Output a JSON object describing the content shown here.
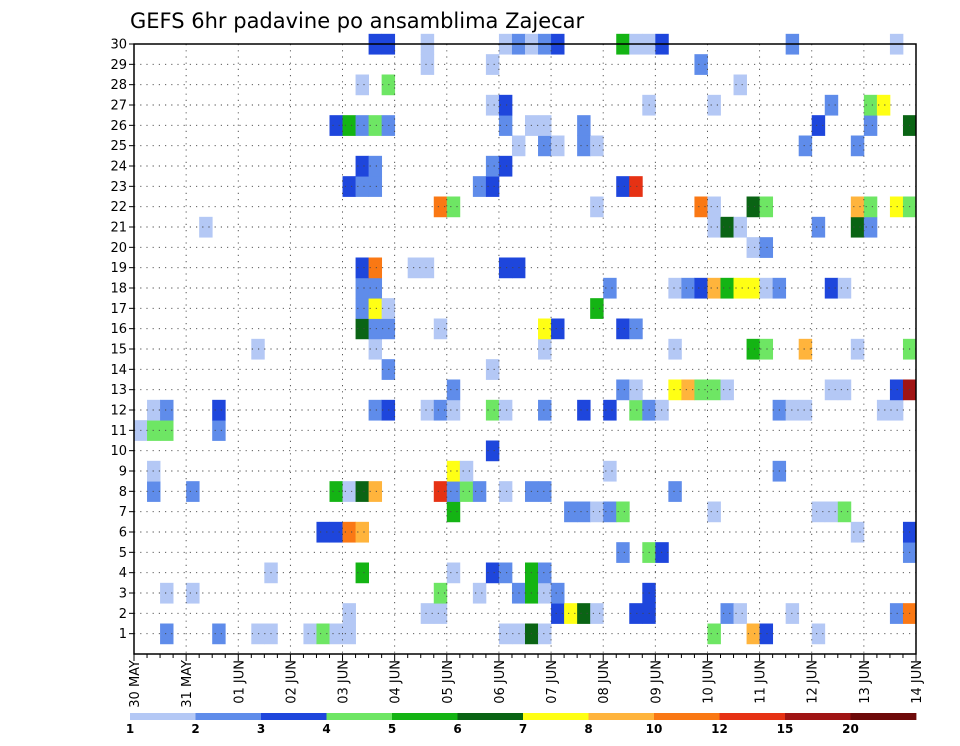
{
  "chart_data": {
    "type": "heatmap",
    "title": "GEFS 6hr padavine po ansamblima Zajecar",
    "xlabel": "",
    "ylabel": "",
    "y_labels": [
      "1",
      "2",
      "3",
      "4",
      "5",
      "6",
      "7",
      "8",
      "9",
      "10",
      "11",
      "12",
      "13",
      "14",
      "15",
      "16",
      "17",
      "18",
      "19",
      "20",
      "21",
      "22",
      "23",
      "24",
      "25",
      "26",
      "27",
      "28",
      "29",
      "30"
    ],
    "x_labels": [
      "30 MAY",
      "31 MAY",
      "01 JUN",
      "02 JUN",
      "03 JUN",
      "04 JUN",
      "05 JUN",
      "06 JUN",
      "07 JUN",
      "08 JUN",
      "09 JUN",
      "10 JUN",
      "11 JUN",
      "12 JUN",
      "13 JUN",
      "14 JUN"
    ],
    "x_steps_per_day": 4,
    "x_range_steps": [
      0,
      60
    ],
    "ylim": [
      0,
      30
    ],
    "grid": true,
    "colorbar": {
      "tick_labels": [
        "1",
        "2",
        "3",
        "4",
        "5",
        "6",
        "7",
        "8",
        "10",
        "12",
        "15",
        "20"
      ],
      "colors": [
        "#b4c8f5",
        "#5f8cea",
        "#1e46dc",
        "#6ee664",
        "#14b414",
        "#0a6414",
        "#ffff14",
        "#ffb43c",
        "#fa7814",
        "#e63214",
        "#a01414",
        "#6e0a0a"
      ]
    },
    "members": [
      {
        "y": 1,
        "cells": [
          [
            3,
            "#5f8cea"
          ],
          [
            7,
            "#5f8cea"
          ],
          [
            10,
            "#b4c8f5"
          ],
          [
            11,
            "#b4c8f5"
          ],
          [
            14,
            "#b4c8f5"
          ],
          [
            15,
            "#6ee664"
          ],
          [
            16,
            "#b4c8f5"
          ],
          [
            17,
            "#b4c8f5"
          ],
          [
            29,
            "#b4c8f5"
          ],
          [
            30,
            "#b4c8f5"
          ],
          [
            31,
            "#0a6414"
          ],
          [
            32,
            "#b4c8f5"
          ],
          [
            45,
            "#6ee664"
          ],
          [
            48,
            "#ffb43c"
          ],
          [
            49,
            "#1e46dc"
          ],
          [
            53,
            "#b4c8f5"
          ]
        ]
      },
      {
        "y": 2,
        "cells": [
          [
            17,
            "#b4c8f5"
          ],
          [
            23,
            "#b4c8f5"
          ],
          [
            24,
            "#b4c8f5"
          ],
          [
            33,
            "#1e46dc"
          ],
          [
            34,
            "#ffff14"
          ],
          [
            35,
            "#0a6414"
          ],
          [
            36,
            "#b4c8f5"
          ],
          [
            39,
            "#1e46dc"
          ],
          [
            40,
            "#1e46dc"
          ],
          [
            46,
            "#5f8cea"
          ],
          [
            47,
            "#b4c8f5"
          ],
          [
            51,
            "#b4c8f5"
          ],
          [
            59,
            "#5f8cea"
          ],
          [
            60,
            "#fa7814"
          ]
        ]
      },
      {
        "y": 3,
        "cells": [
          [
            3,
            "#b4c8f5"
          ],
          [
            5,
            "#b4c8f5"
          ],
          [
            24,
            "#6ee664"
          ],
          [
            27,
            "#b4c8f5"
          ],
          [
            30,
            "#5f8cea"
          ],
          [
            31,
            "#14b414"
          ],
          [
            32,
            "#b4c8f5"
          ],
          [
            33,
            "#5f8cea"
          ],
          [
            40,
            "#1e46dc"
          ]
        ]
      },
      {
        "y": 4,
        "cells": [
          [
            11,
            "#b4c8f5"
          ],
          [
            18,
            "#14b414"
          ],
          [
            25,
            "#b4c8f5"
          ],
          [
            28,
            "#1e46dc"
          ],
          [
            29,
            "#5f8cea"
          ],
          [
            31,
            "#14b414"
          ],
          [
            32,
            "#5f8cea"
          ]
        ]
      },
      {
        "y": 5,
        "cells": [
          [
            38,
            "#5f8cea"
          ],
          [
            40,
            "#6ee664"
          ],
          [
            41,
            "#1e46dc"
          ],
          [
            60,
            "#5f8cea"
          ]
        ]
      },
      {
        "y": 6,
        "cells": [
          [
            15,
            "#1e46dc"
          ],
          [
            16,
            "#1e46dc"
          ],
          [
            17,
            "#fa7814"
          ],
          [
            18,
            "#ffb43c"
          ],
          [
            56,
            "#b4c8f5"
          ],
          [
            60,
            "#1e46dc"
          ]
        ]
      },
      {
        "y": 7,
        "cells": [
          [
            25,
            "#14b414"
          ],
          [
            34,
            "#5f8cea"
          ],
          [
            35,
            "#5f8cea"
          ],
          [
            36,
            "#b4c8f5"
          ],
          [
            37,
            "#5f8cea"
          ],
          [
            38,
            "#6ee664"
          ],
          [
            45,
            "#b4c8f5"
          ],
          [
            53,
            "#b4c8f5"
          ],
          [
            54,
            "#b4c8f5"
          ],
          [
            55,
            "#6ee664"
          ]
        ]
      },
      {
        "y": 8,
        "cells": [
          [
            2,
            "#5f8cea"
          ],
          [
            5,
            "#5f8cea"
          ],
          [
            16,
            "#14b414"
          ],
          [
            17,
            "#b4c8f5"
          ],
          [
            18,
            "#0a6414"
          ],
          [
            19,
            "#ffb43c"
          ],
          [
            24,
            "#e63214"
          ],
          [
            25,
            "#5f8cea"
          ],
          [
            26,
            "#6ee664"
          ],
          [
            27,
            "#5f8cea"
          ],
          [
            29,
            "#b4c8f5"
          ],
          [
            31,
            "#5f8cea"
          ],
          [
            32,
            "#5f8cea"
          ],
          [
            42,
            "#5f8cea"
          ]
        ]
      },
      {
        "y": 9,
        "cells": [
          [
            2,
            "#b4c8f5"
          ],
          [
            25,
            "#ffff14"
          ],
          [
            26,
            "#b4c8f5"
          ],
          [
            37,
            "#b4c8f5"
          ],
          [
            50,
            "#5f8cea"
          ]
        ]
      },
      {
        "y": 10,
        "cells": [
          [
            28,
            "#1e46dc"
          ]
        ]
      },
      {
        "y": 11,
        "cells": [
          [
            1,
            "#b4c8f5"
          ],
          [
            2,
            "#6ee664"
          ],
          [
            3,
            "#6ee664"
          ],
          [
            7,
            "#5f8cea"
          ]
        ]
      },
      {
        "y": 12,
        "cells": [
          [
            2,
            "#b4c8f5"
          ],
          [
            3,
            "#5f8cea"
          ],
          [
            7,
            "#1e46dc"
          ],
          [
            19,
            "#5f8cea"
          ],
          [
            20,
            "#1e46dc"
          ],
          [
            23,
            "#b4c8f5"
          ],
          [
            24,
            "#5f8cea"
          ],
          [
            25,
            "#b4c8f5"
          ],
          [
            28,
            "#6ee664"
          ],
          [
            29,
            "#b4c8f5"
          ],
          [
            32,
            "#5f8cea"
          ],
          [
            35,
            "#1e46dc"
          ],
          [
            37,
            "#1e46dc"
          ],
          [
            39,
            "#6ee664"
          ],
          [
            40,
            "#5f8cea"
          ],
          [
            41,
            "#b4c8f5"
          ],
          [
            50,
            "#5f8cea"
          ],
          [
            51,
            "#b4c8f5"
          ],
          [
            52,
            "#b4c8f5"
          ],
          [
            58,
            "#b4c8f5"
          ],
          [
            59,
            "#b4c8f5"
          ]
        ]
      },
      {
        "y": 13,
        "cells": [
          [
            25,
            "#5f8cea"
          ],
          [
            38,
            "#5f8cea"
          ],
          [
            39,
            "#b4c8f5"
          ],
          [
            42,
            "#ffff14"
          ],
          [
            43,
            "#ffb43c"
          ],
          [
            44,
            "#6ee664"
          ],
          [
            45,
            "#6ee664"
          ],
          [
            46,
            "#b4c8f5"
          ],
          [
            54,
            "#b4c8f5"
          ],
          [
            55,
            "#b4c8f5"
          ],
          [
            59,
            "#1e46dc"
          ],
          [
            60,
            "#a01414"
          ]
        ]
      },
      {
        "y": 14,
        "cells": [
          [
            20,
            "#5f8cea"
          ],
          [
            28,
            "#b4c8f5"
          ]
        ]
      },
      {
        "y": 15,
        "cells": [
          [
            10,
            "#b4c8f5"
          ],
          [
            19,
            "#b4c8f5"
          ],
          [
            32,
            "#b4c8f5"
          ],
          [
            42,
            "#b4c8f5"
          ],
          [
            48,
            "#14b414"
          ],
          [
            49,
            "#6ee664"
          ],
          [
            52,
            "#ffb43c"
          ],
          [
            56,
            "#b4c8f5"
          ],
          [
            60,
            "#6ee664"
          ]
        ]
      },
      {
        "y": 16,
        "cells": [
          [
            18,
            "#0a6414"
          ],
          [
            19,
            "#5f8cea"
          ],
          [
            20,
            "#5f8cea"
          ],
          [
            24,
            "#b4c8f5"
          ],
          [
            32,
            "#ffff14"
          ],
          [
            33,
            "#1e46dc"
          ],
          [
            38,
            "#1e46dc"
          ],
          [
            39,
            "#5f8cea"
          ]
        ]
      },
      {
        "y": 17,
        "cells": [
          [
            18,
            "#5f8cea"
          ],
          [
            19,
            "#ffff14"
          ],
          [
            20,
            "#b4c8f5"
          ],
          [
            36,
            "#14b414"
          ]
        ]
      },
      {
        "y": 18,
        "cells": [
          [
            18,
            "#5f8cea"
          ],
          [
            19,
            "#5f8cea"
          ],
          [
            37,
            "#5f8cea"
          ],
          [
            42,
            "#b4c8f5"
          ],
          [
            43,
            "#5f8cea"
          ],
          [
            44,
            "#1e46dc"
          ],
          [
            45,
            "#ffb43c"
          ],
          [
            46,
            "#14b414"
          ],
          [
            47,
            "#ffff14"
          ],
          [
            48,
            "#ffff14"
          ],
          [
            49,
            "#b4c8f5"
          ],
          [
            50,
            "#5f8cea"
          ],
          [
            54,
            "#1e46dc"
          ],
          [
            55,
            "#b4c8f5"
          ]
        ]
      },
      {
        "y": 19,
        "cells": [
          [
            18,
            "#1e46dc"
          ],
          [
            19,
            "#fa7814"
          ],
          [
            22,
            "#b4c8f5"
          ],
          [
            23,
            "#b4c8f5"
          ],
          [
            29,
            "#1e46dc"
          ],
          [
            30,
            "#1e46dc"
          ]
        ]
      },
      {
        "y": 20,
        "cells": [
          [
            48,
            "#b4c8f5"
          ],
          [
            49,
            "#5f8cea"
          ]
        ]
      },
      {
        "y": 21,
        "cells": [
          [
            6,
            "#b4c8f5"
          ],
          [
            45,
            "#b4c8f5"
          ],
          [
            46,
            "#0a6414"
          ],
          [
            47,
            "#b4c8f5"
          ],
          [
            53,
            "#5f8cea"
          ],
          [
            56,
            "#0a6414"
          ],
          [
            57,
            "#5f8cea"
          ]
        ]
      },
      {
        "y": 22,
        "cells": [
          [
            24,
            "#fa7814"
          ],
          [
            25,
            "#6ee664"
          ],
          [
            36,
            "#b4c8f5"
          ],
          [
            44,
            "#fa7814"
          ],
          [
            45,
            "#b4c8f5"
          ],
          [
            48,
            "#0a6414"
          ],
          [
            49,
            "#6ee664"
          ],
          [
            56,
            "#ffb43c"
          ],
          [
            57,
            "#6ee664"
          ],
          [
            59,
            "#ffff14"
          ],
          [
            60,
            "#6ee664"
          ]
        ]
      },
      {
        "y": 23,
        "cells": [
          [
            17,
            "#1e46dc"
          ],
          [
            18,
            "#5f8cea"
          ],
          [
            19,
            "#5f8cea"
          ],
          [
            27,
            "#5f8cea"
          ],
          [
            28,
            "#1e46dc"
          ],
          [
            38,
            "#1e46dc"
          ],
          [
            39,
            "#e63214"
          ]
        ]
      },
      {
        "y": 24,
        "cells": [
          [
            18,
            "#1e46dc"
          ],
          [
            19,
            "#5f8cea"
          ],
          [
            28,
            "#5f8cea"
          ],
          [
            29,
            "#1e46dc"
          ]
        ]
      },
      {
        "y": 25,
        "cells": [
          [
            30,
            "#b4c8f5"
          ],
          [
            32,
            "#5f8cea"
          ],
          [
            33,
            "#b4c8f5"
          ],
          [
            35,
            "#5f8cea"
          ],
          [
            36,
            "#b4c8f5"
          ],
          [
            52,
            "#5f8cea"
          ],
          [
            56,
            "#5f8cea"
          ]
        ]
      },
      {
        "y": 26,
        "cells": [
          [
            16,
            "#1e46dc"
          ],
          [
            17,
            "#14b414"
          ],
          [
            18,
            "#5f8cea"
          ],
          [
            19,
            "#6ee664"
          ],
          [
            20,
            "#5f8cea"
          ],
          [
            29,
            "#5f8cea"
          ],
          [
            31,
            "#b4c8f5"
          ],
          [
            32,
            "#b4c8f5"
          ],
          [
            35,
            "#5f8cea"
          ],
          [
            53,
            "#1e46dc"
          ],
          [
            57,
            "#5f8cea"
          ],
          [
            60,
            "#0a6414"
          ]
        ]
      },
      {
        "y": 27,
        "cells": [
          [
            28,
            "#b4c8f5"
          ],
          [
            29,
            "#1e46dc"
          ],
          [
            40,
            "#b4c8f5"
          ],
          [
            45,
            "#b4c8f5"
          ],
          [
            54,
            "#5f8cea"
          ],
          [
            57,
            "#6ee664"
          ],
          [
            58,
            "#ffff14"
          ]
        ]
      },
      {
        "y": 28,
        "cells": [
          [
            18,
            "#b4c8f5"
          ],
          [
            20,
            "#6ee664"
          ],
          [
            47,
            "#b4c8f5"
          ]
        ]
      },
      {
        "y": 29,
        "cells": [
          [
            23,
            "#b4c8f5"
          ],
          [
            28,
            "#b4c8f5"
          ],
          [
            44,
            "#5f8cea"
          ]
        ]
      },
      {
        "y": 30,
        "cells": [
          [
            19,
            "#1e46dc"
          ],
          [
            20,
            "#1e46dc"
          ],
          [
            23,
            "#b4c8f5"
          ],
          [
            29,
            "#b4c8f5"
          ],
          [
            30,
            "#5f8cea"
          ],
          [
            31,
            "#b4c8f5"
          ],
          [
            32,
            "#5f8cea"
          ],
          [
            33,
            "#1e46dc"
          ],
          [
            38,
            "#14b414"
          ],
          [
            39,
            "#b4c8f5"
          ],
          [
            40,
            "#b4c8f5"
          ],
          [
            41,
            "#1e46dc"
          ],
          [
            51,
            "#5f8cea"
          ],
          [
            59,
            "#b4c8f5"
          ]
        ]
      }
    ]
  }
}
